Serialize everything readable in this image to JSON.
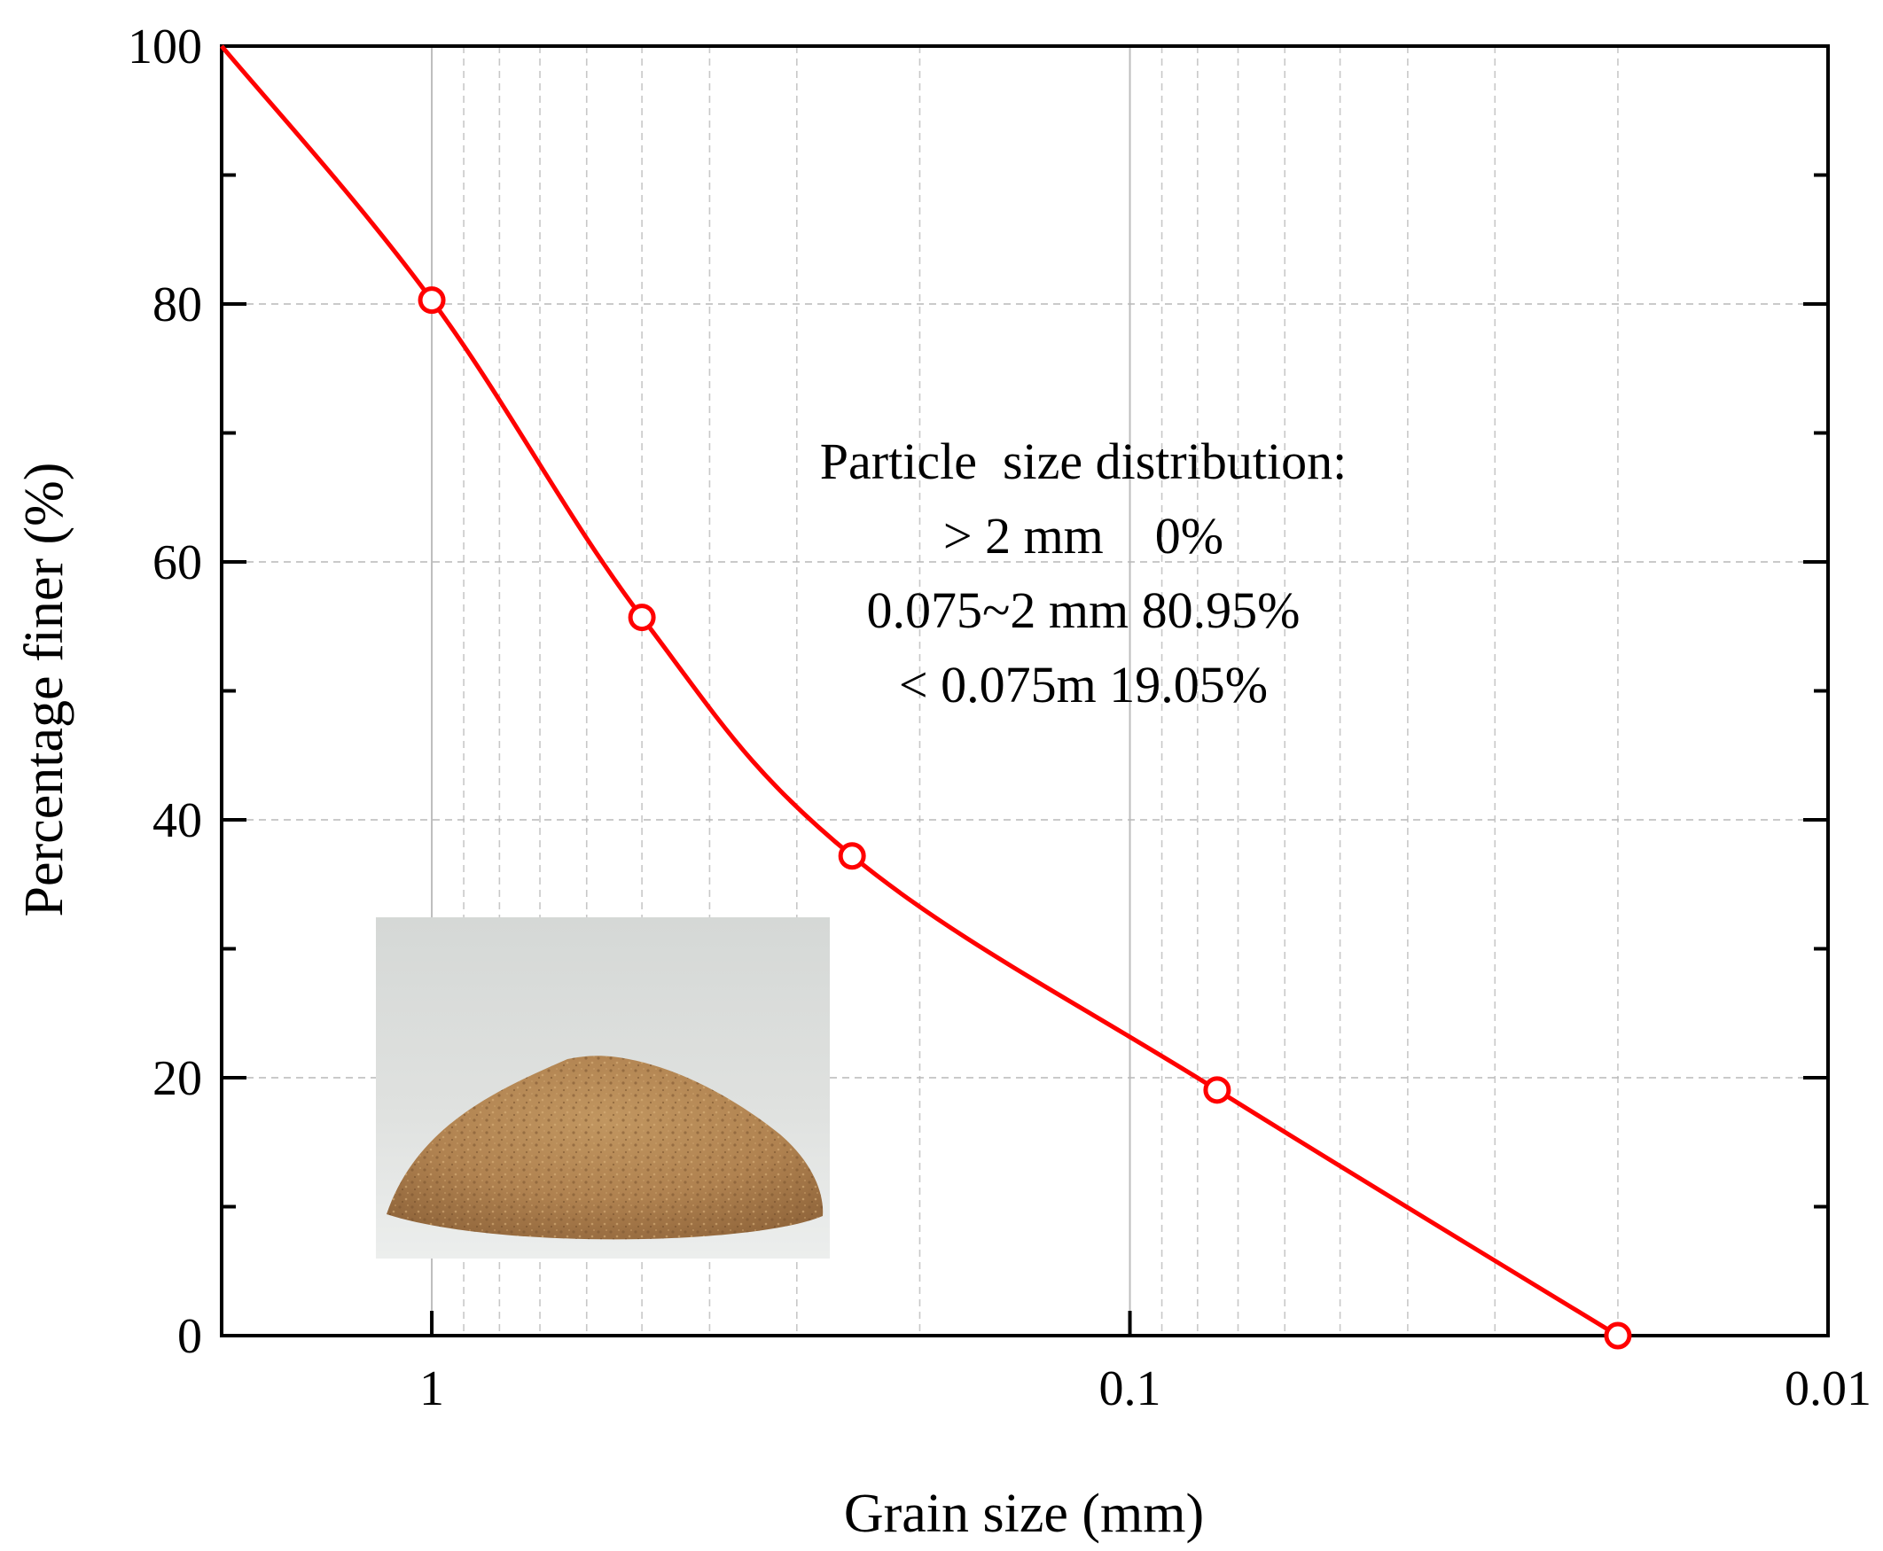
{
  "chart_data": {
    "type": "line",
    "x_scale": "log",
    "x_reversed": true,
    "xlabel": "Grain size (mm)",
    "ylabel": "Percentage finer (%)",
    "xlim": [
      2,
      0.01
    ],
    "ylim": [
      0,
      100
    ],
    "x_ticks": [
      1,
      0.1,
      0.01
    ],
    "x_tick_labels": [
      "1",
      "0.1",
      "0.01"
    ],
    "y_ticks": [
      0,
      20,
      40,
      60,
      80,
      100
    ],
    "y_tick_labels": [
      "0",
      "20",
      "40",
      "60",
      "80",
      "100"
    ],
    "grid": true,
    "series": [
      {
        "color": "#ff0000",
        "points": [
          {
            "x": 2,
            "y": 100,
            "marker": false
          },
          {
            "x": 1,
            "y": 80.3,
            "marker": true
          },
          {
            "x": 0.5,
            "y": 55.7,
            "marker": true
          },
          {
            "x": 0.25,
            "y": 37.2,
            "marker": true
          },
          {
            "x": 0.075,
            "y": 19.05,
            "marker": true
          },
          {
            "x": 0.02,
            "y": 0,
            "marker": true
          }
        ]
      }
    ],
    "annotation": {
      "lines": [
        "Particle  size distribution:",
        "> 2 mm    0%",
        "0.075~2 mm 80.95%",
        "< 0.075m 19.05%"
      ]
    },
    "inset_image": {
      "subject": "photo of a sand pile",
      "colors": {
        "background": "#d9dcd9",
        "surface": "#e8e9e8",
        "sand": "#b88a55",
        "sand_dark": "#8f6638"
      }
    }
  }
}
